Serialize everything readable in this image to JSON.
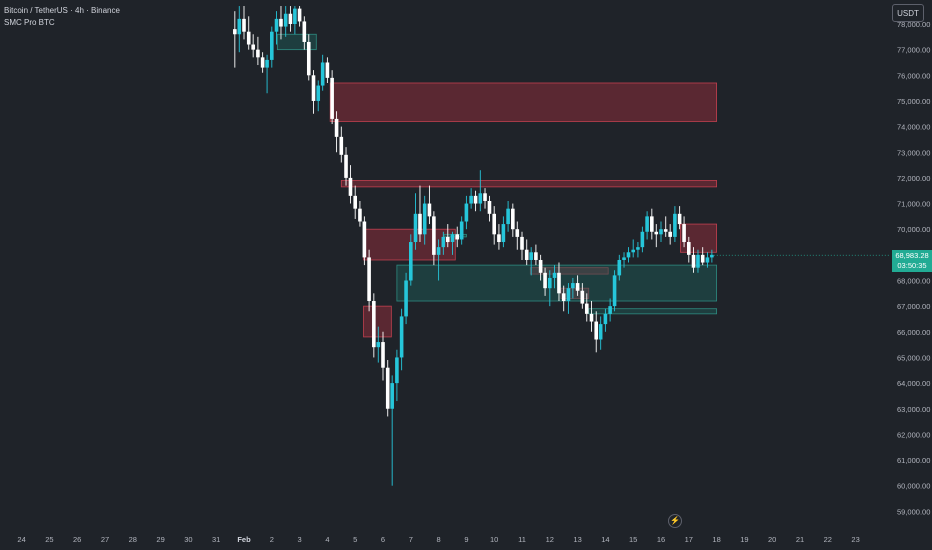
{
  "header": {
    "symbol_line": "Bitcoin / TetherUS · 4h · Binance",
    "indicator_line": "SMC Pro BTC",
    "currency_badge": "USDT"
  },
  "last_price": {
    "value": "68,983.28",
    "countdown": "03:50:35"
  },
  "icons": {
    "alert": "lightning-icon"
  },
  "colors": {
    "up": "#26c6da",
    "down": "#ffffff",
    "bear_zone": "#8a2d3a",
    "bull_zone": "#1e5a55",
    "last_price": "#22ab94"
  },
  "chart_data": {
    "type": "candlestick",
    "y_axis": {
      "ylim": [
        58400,
        78700
      ],
      "ticks": [
        59000,
        60000,
        61000,
        62000,
        63000,
        64000,
        65000,
        66000,
        67000,
        68000,
        69000,
        70000,
        71000,
        72000,
        73000,
        74000,
        75000,
        76000,
        77000,
        78000
      ],
      "tick_labels": [
        "59,000.00",
        "60,000.00",
        "61,000.00",
        "62,000.00",
        "63,000.00",
        "64,000.00",
        "65,000.00",
        "66,000.00",
        "67,000.00",
        "68,000.00",
        "69,000.00",
        "70,000.00",
        "71,000.00",
        "72,000.00",
        "73,000.00",
        "74,000.00",
        "75,000.00",
        "76,000.00",
        "77,000.00",
        "78,000.00"
      ]
    },
    "x_axis": {
      "labels": [
        "24",
        "25",
        "26",
        "27",
        "28",
        "29",
        "30",
        "31",
        "Feb",
        "2",
        "3",
        "4",
        "5",
        "6",
        "7",
        "8",
        "9",
        "10",
        "11",
        "12",
        "13",
        "14",
        "15",
        "16",
        "17",
        "18",
        "19",
        "20",
        "21",
        "22",
        "23"
      ],
      "label_day_index": [
        -8,
        -7,
        -6,
        -5,
        -4,
        -3,
        -2,
        -1,
        0,
        1,
        2,
        3,
        4,
        5,
        6,
        7,
        8,
        9,
        10,
        11,
        12,
        13,
        14,
        15,
        16,
        17,
        18,
        19,
        20,
        21,
        22
      ],
      "bold_label": "Feb",
      "note": "day index 0 = Feb 1; candles are 4h (6 per day)"
    },
    "candles": [
      {
        "d": -0.33,
        "o": 77800,
        "h": 78500,
        "l": 76300,
        "c": 77600
      },
      {
        "d": -0.17,
        "o": 77600,
        "h": 78700,
        "l": 76900,
        "c": 78200
      },
      {
        "d": 0.0,
        "o": 78200,
        "h": 78700,
        "l": 77400,
        "c": 77700
      },
      {
        "d": 0.17,
        "o": 77700,
        "h": 78300,
        "l": 77000,
        "c": 77200
      },
      {
        "d": 0.33,
        "o": 77200,
        "h": 77600,
        "l": 76700,
        "c": 77000
      },
      {
        "d": 0.5,
        "o": 77000,
        "h": 77500,
        "l": 76400,
        "c": 76700
      },
      {
        "d": 0.67,
        "o": 76700,
        "h": 76900,
        "l": 76100,
        "c": 76300
      },
      {
        "d": 0.83,
        "o": 76300,
        "h": 76800,
        "l": 75300,
        "c": 76600
      },
      {
        "d": 1.0,
        "o": 76600,
        "h": 77900,
        "l": 76300,
        "c": 77700
      },
      {
        "d": 1.17,
        "o": 77700,
        "h": 78500,
        "l": 77200,
        "c": 78200
      },
      {
        "d": 1.33,
        "o": 78200,
        "h": 78700,
        "l": 77400,
        "c": 77900
      },
      {
        "d": 1.5,
        "o": 77900,
        "h": 78700,
        "l": 77500,
        "c": 78400
      },
      {
        "d": 1.67,
        "o": 78400,
        "h": 78700,
        "l": 77700,
        "c": 78000
      },
      {
        "d": 1.83,
        "o": 78000,
        "h": 78700,
        "l": 77600,
        "c": 78600
      },
      {
        "d": 2.0,
        "o": 78600,
        "h": 78700,
        "l": 77900,
        "c": 78100
      },
      {
        "d": 2.17,
        "o": 78100,
        "h": 78300,
        "l": 77000,
        "c": 77300
      },
      {
        "d": 2.33,
        "o": 77300,
        "h": 77600,
        "l": 75800,
        "c": 76000
      },
      {
        "d": 2.5,
        "o": 76000,
        "h": 76200,
        "l": 74500,
        "c": 75000
      },
      {
        "d": 2.67,
        "o": 75000,
        "h": 75800,
        "l": 74600,
        "c": 75600
      },
      {
        "d": 2.83,
        "o": 75600,
        "h": 76800,
        "l": 75400,
        "c": 76500
      },
      {
        "d": 3.0,
        "o": 76500,
        "h": 76700,
        "l": 75700,
        "c": 75900
      },
      {
        "d": 3.17,
        "o": 75900,
        "h": 76200,
        "l": 74100,
        "c": 74300
      },
      {
        "d": 3.33,
        "o": 74300,
        "h": 74600,
        "l": 73000,
        "c": 73600
      },
      {
        "d": 3.5,
        "o": 73600,
        "h": 74000,
        "l": 72600,
        "c": 72900
      },
      {
        "d": 3.67,
        "o": 72900,
        "h": 73200,
        "l": 71700,
        "c": 72000
      },
      {
        "d": 3.83,
        "o": 72000,
        "h": 72500,
        "l": 71000,
        "c": 71300
      },
      {
        "d": 4.0,
        "o": 71300,
        "h": 71700,
        "l": 70400,
        "c": 70800
      },
      {
        "d": 4.17,
        "o": 70800,
        "h": 71100,
        "l": 70100,
        "c": 70300
      },
      {
        "d": 4.33,
        "o": 70300,
        "h": 70500,
        "l": 68600,
        "c": 68900
      },
      {
        "d": 4.5,
        "o": 68900,
        "h": 69200,
        "l": 66800,
        "c": 67200
      },
      {
        "d": 4.67,
        "o": 67200,
        "h": 67500,
        "l": 65000,
        "c": 65400
      },
      {
        "d": 4.83,
        "o": 65400,
        "h": 66200,
        "l": 64800,
        "c": 65600
      },
      {
        "d": 5.0,
        "o": 65600,
        "h": 66000,
        "l": 64100,
        "c": 64600
      },
      {
        "d": 5.17,
        "o": 64600,
        "h": 64900,
        "l": 62700,
        "c": 63000
      },
      {
        "d": 5.33,
        "o": 63000,
        "h": 64300,
        "l": 60000,
        "c": 64000
      },
      {
        "d": 5.5,
        "o": 64000,
        "h": 65300,
        "l": 63300,
        "c": 65000
      },
      {
        "d": 5.67,
        "o": 65000,
        "h": 66900,
        "l": 64500,
        "c": 66600
      },
      {
        "d": 5.83,
        "o": 66600,
        "h": 68300,
        "l": 66300,
        "c": 68000
      },
      {
        "d": 6.0,
        "o": 68000,
        "h": 69800,
        "l": 67800,
        "c": 69500
      },
      {
        "d": 6.17,
        "o": 69500,
        "h": 71400,
        "l": 69200,
        "c": 70600
      },
      {
        "d": 6.33,
        "o": 70600,
        "h": 71700,
        "l": 69500,
        "c": 69800
      },
      {
        "d": 6.5,
        "o": 69800,
        "h": 71300,
        "l": 69400,
        "c": 71000
      },
      {
        "d": 6.67,
        "o": 71000,
        "h": 71700,
        "l": 70200,
        "c": 70500
      },
      {
        "d": 6.83,
        "o": 70500,
        "h": 70700,
        "l": 68600,
        "c": 69000
      },
      {
        "d": 7.0,
        "o": 69000,
        "h": 69600,
        "l": 68000,
        "c": 69300
      },
      {
        "d": 7.17,
        "o": 69300,
        "h": 69900,
        "l": 69000,
        "c": 69700
      },
      {
        "d": 7.33,
        "o": 69700,
        "h": 70200,
        "l": 69300,
        "c": 69500
      },
      {
        "d": 7.5,
        "o": 69500,
        "h": 69900,
        "l": 69000,
        "c": 69800
      },
      {
        "d": 7.67,
        "o": 69800,
        "h": 70100,
        "l": 69300,
        "c": 69600
      },
      {
        "d": 7.83,
        "o": 69600,
        "h": 70500,
        "l": 69400,
        "c": 70300
      },
      {
        "d": 8.0,
        "o": 70300,
        "h": 71300,
        "l": 70000,
        "c": 71000
      },
      {
        "d": 8.17,
        "o": 71000,
        "h": 71600,
        "l": 70800,
        "c": 71300
      },
      {
        "d": 8.33,
        "o": 71300,
        "h": 71500,
        "l": 70700,
        "c": 71000
      },
      {
        "d": 8.5,
        "o": 71000,
        "h": 72300,
        "l": 70700,
        "c": 71400
      },
      {
        "d": 8.67,
        "o": 71400,
        "h": 71600,
        "l": 70800,
        "c": 71100
      },
      {
        "d": 8.83,
        "o": 71100,
        "h": 71300,
        "l": 70300,
        "c": 70600
      },
      {
        "d": 9.0,
        "o": 70600,
        "h": 70900,
        "l": 69400,
        "c": 69800
      },
      {
        "d": 9.17,
        "o": 69800,
        "h": 70200,
        "l": 69200,
        "c": 69500
      },
      {
        "d": 9.33,
        "o": 69500,
        "h": 70500,
        "l": 69300,
        "c": 70200
      },
      {
        "d": 9.5,
        "o": 70200,
        "h": 71100,
        "l": 69900,
        "c": 70800
      },
      {
        "d": 9.67,
        "o": 70800,
        "h": 71000,
        "l": 69700,
        "c": 70000
      },
      {
        "d": 9.83,
        "o": 70000,
        "h": 70300,
        "l": 69200,
        "c": 69700
      },
      {
        "d": 10.0,
        "o": 69700,
        "h": 69900,
        "l": 68800,
        "c": 69200
      },
      {
        "d": 10.17,
        "o": 69200,
        "h": 69600,
        "l": 68600,
        "c": 68800
      },
      {
        "d": 10.33,
        "o": 68800,
        "h": 69300,
        "l": 68200,
        "c": 69100
      },
      {
        "d": 10.5,
        "o": 69100,
        "h": 69400,
        "l": 68600,
        "c": 68800
      },
      {
        "d": 10.67,
        "o": 68800,
        "h": 69000,
        "l": 68000,
        "c": 68300
      },
      {
        "d": 10.83,
        "o": 68300,
        "h": 68500,
        "l": 67400,
        "c": 67700
      },
      {
        "d": 11.0,
        "o": 67700,
        "h": 68400,
        "l": 67000,
        "c": 68100
      },
      {
        "d": 11.17,
        "o": 68100,
        "h": 68600,
        "l": 67700,
        "c": 68300
      },
      {
        "d": 11.33,
        "o": 68300,
        "h": 68700,
        "l": 67200,
        "c": 67500
      },
      {
        "d": 11.5,
        "o": 67500,
        "h": 67800,
        "l": 66800,
        "c": 67200
      },
      {
        "d": 11.67,
        "o": 67200,
        "h": 67900,
        "l": 66700,
        "c": 67700
      },
      {
        "d": 11.83,
        "o": 67700,
        "h": 68100,
        "l": 67300,
        "c": 67900
      },
      {
        "d": 12.0,
        "o": 67900,
        "h": 68200,
        "l": 67400,
        "c": 67600
      },
      {
        "d": 12.17,
        "o": 67600,
        "h": 67900,
        "l": 66900,
        "c": 67100
      },
      {
        "d": 12.33,
        "o": 67100,
        "h": 67500,
        "l": 66400,
        "c": 66700
      },
      {
        "d": 12.5,
        "o": 66700,
        "h": 67200,
        "l": 66000,
        "c": 66400
      },
      {
        "d": 12.67,
        "o": 66400,
        "h": 66800,
        "l": 65200,
        "c": 65700
      },
      {
        "d": 12.83,
        "o": 65700,
        "h": 66600,
        "l": 65300,
        "c": 66300
      },
      {
        "d": 13.0,
        "o": 66300,
        "h": 66900,
        "l": 66000,
        "c": 66700
      },
      {
        "d": 13.17,
        "o": 66700,
        "h": 67300,
        "l": 66400,
        "c": 67000
      },
      {
        "d": 13.33,
        "o": 67000,
        "h": 68400,
        "l": 66800,
        "c": 68200
      },
      {
        "d": 13.5,
        "o": 68200,
        "h": 69000,
        "l": 68000,
        "c": 68800
      },
      {
        "d": 13.67,
        "o": 68800,
        "h": 69100,
        "l": 68500,
        "c": 68900
      },
      {
        "d": 13.83,
        "o": 68900,
        "h": 69300,
        "l": 68700,
        "c": 69100
      },
      {
        "d": 14.0,
        "o": 69100,
        "h": 69600,
        "l": 68900,
        "c": 69200
      },
      {
        "d": 14.17,
        "o": 69200,
        "h": 69500,
        "l": 68900,
        "c": 69300
      },
      {
        "d": 14.33,
        "o": 69300,
        "h": 70100,
        "l": 69100,
        "c": 69900
      },
      {
        "d": 14.5,
        "o": 69900,
        "h": 70700,
        "l": 69600,
        "c": 70500
      },
      {
        "d": 14.67,
        "o": 70500,
        "h": 70800,
        "l": 69600,
        "c": 69900
      },
      {
        "d": 14.83,
        "o": 69900,
        "h": 70200,
        "l": 69300,
        "c": 69800
      },
      {
        "d": 15.0,
        "o": 69800,
        "h": 70300,
        "l": 69500,
        "c": 70000
      },
      {
        "d": 15.17,
        "o": 70000,
        "h": 70500,
        "l": 69700,
        "c": 69900
      },
      {
        "d": 15.33,
        "o": 69900,
        "h": 70200,
        "l": 69400,
        "c": 69700
      },
      {
        "d": 15.5,
        "o": 69700,
        "h": 70900,
        "l": 69500,
        "c": 70600
      },
      {
        "d": 15.67,
        "o": 70600,
        "h": 70900,
        "l": 70000,
        "c": 70200
      },
      {
        "d": 15.83,
        "o": 70200,
        "h": 70500,
        "l": 69300,
        "c": 69500
      },
      {
        "d": 16.0,
        "o": 69500,
        "h": 69700,
        "l": 68700,
        "c": 69000
      },
      {
        "d": 16.17,
        "o": 69000,
        "h": 69300,
        "l": 68300,
        "c": 68500
      },
      {
        "d": 16.33,
        "o": 68500,
        "h": 69200,
        "l": 68300,
        "c": 69000
      },
      {
        "d": 16.5,
        "o": 69000,
        "h": 69300,
        "l": 68600,
        "c": 68700
      },
      {
        "d": 16.67,
        "o": 68700,
        "h": 69100,
        "l": 68500,
        "c": 68900
      },
      {
        "d": 16.83,
        "o": 68900,
        "h": 69200,
        "l": 68700,
        "c": 69000
      }
    ],
    "zones": [
      {
        "kind": "bear",
        "x0": 3.1,
        "x1": 17.0,
        "top": 75700,
        "bottom": 74200
      },
      {
        "kind": "bear",
        "x0": 3.5,
        "x1": 17.0,
        "top": 71900,
        "bottom": 71650
      },
      {
        "kind": "bear",
        "x0": 4.3,
        "x1": 7.6,
        "top": 70000,
        "bottom": 68800
      },
      {
        "kind": "bear",
        "x0": 15.7,
        "x1": 17.0,
        "top": 70200,
        "bottom": 69100
      },
      {
        "kind": "bear",
        "x0": 10.3,
        "x1": 13.1,
        "top": 68500,
        "bottom": 68250
      },
      {
        "kind": "bear",
        "x0": 4.3,
        "x1": 5.3,
        "top": 67000,
        "bottom": 65800
      },
      {
        "kind": "bear",
        "x0": 11.4,
        "x1": 12.4,
        "top": 67700,
        "bottom": 67300
      },
      {
        "kind": "bull",
        "x0": 1.2,
        "x1": 2.6,
        "top": 77600,
        "bottom": 77000
      },
      {
        "kind": "bull",
        "x0": 5.5,
        "x1": 17.0,
        "top": 68600,
        "bottom": 67200
      },
      {
        "kind": "bull",
        "x0": 12.4,
        "x1": 17.0,
        "top": 66900,
        "bottom": 66700
      },
      {
        "kind": "bull",
        "x0": 7.2,
        "x1": 8.0,
        "top": 69800,
        "bottom": 69700
      }
    ],
    "last_price_level": 68983.28
  }
}
